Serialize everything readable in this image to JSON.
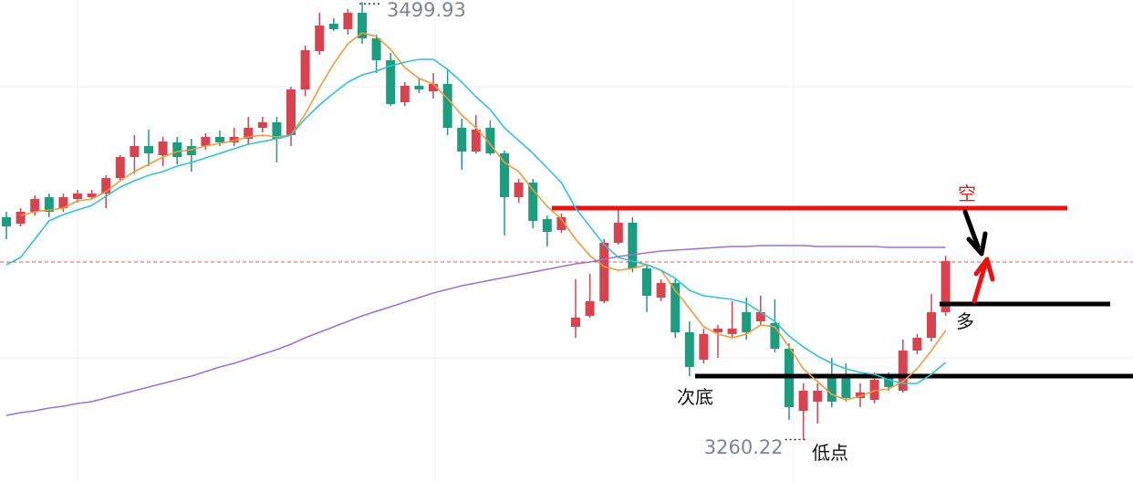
{
  "chart_data": {
    "type": "candlestick",
    "ylim": [
      3237,
      3501
    ],
    "up_color": "#d9434f",
    "down_color": "#1a9e7f",
    "open": [
      3382,
      3378.5,
      3385,
      3393,
      3387,
      3392,
      3393,
      3395,
      3403.5,
      3415,
      3421,
      3416,
      3423,
      3421,
      3421,
      3426,
      3423,
      3425,
      3431,
      3434,
      3427,
      3452,
      3473,
      3488,
      3485,
      3494,
      3480,
      3468,
      3445,
      3454,
      3451,
      3455,
      3431,
      3418,
      3431,
      3417,
      3393,
      3401,
      3381,
      3375,
      3322,
      3328,
      3336,
      3368,
      3379,
      3354,
      3338,
      3346,
      3319,
      3304,
      3319,
      3318,
      3330,
      3325,
      3324,
      3310,
      3276,
      3281,
      3294,
      3294,
      3283,
      3282,
      3294,
      3287,
      3309,
      3316,
      3330
    ],
    "close": [
      3377,
      3385,
      3392,
      3385,
      3393,
      3395,
      3395,
      3403.5,
      3415,
      3421,
      3417,
      3423.5,
      3415,
      3416,
      3426,
      3423,
      3426,
      3431,
      3434,
      3425,
      3452,
      3473.5,
      3487,
      3485,
      3494,
      3480,
      3468,
      3444,
      3454,
      3452,
      3455,
      3431,
      3418,
      3430,
      3417,
      3393,
      3401,
      3380,
      3374,
      3382,
      3327,
      3336,
      3368,
      3379,
      3354,
      3339,
      3346,
      3319,
      3300,
      3318,
      3321,
      3321,
      3319,
      3330,
      3310,
      3278,
      3287,
      3287,
      3281,
      3283,
      3286,
      3293,
      3289,
      3309,
      3316,
      3330,
      3358
    ],
    "high": [
      3385,
      3387,
      3394,
      3395,
      3395,
      3397,
      3397,
      3405,
      3416,
      3427,
      3430,
      3426,
      3426,
      3425,
      3428,
      3429.5,
      3431,
      3437,
      3437,
      3437,
      3453.5,
      3476,
      3494,
      3491,
      3496,
      3499.93,
      3482,
      3472,
      3456,
      3458,
      3461,
      3463,
      3436,
      3438,
      3435,
      3418.5,
      3403,
      3403,
      3383,
      3384,
      3348,
      3351,
      3370,
      3386,
      3382,
      3356,
      3348,
      3348,
      3325,
      3321,
      3323,
      3336,
      3338,
      3339,
      3337,
      3313,
      3291,
      3291,
      3305,
      3302,
      3291,
      3297,
      3297,
      3315,
      3318,
      3340,
      3361
    ],
    "low": [
      3370,
      3377,
      3383,
      3382,
      3385,
      3390,
      3392,
      3387,
      3402,
      3406,
      3410,
      3410,
      3411,
      3407,
      3419,
      3421,
      3421,
      3422,
      3428.5,
      3412,
      3421,
      3448.5,
      3471,
      3484,
      3482,
      3477,
      3461,
      3443,
      3443,
      3450,
      3447,
      3427,
      3408,
      3417,
      3416,
      3372,
      3390,
      3376,
      3366,
      3373.5,
      3316,
      3327,
      3335,
      3367,
      3352,
      3330,
      3336,
      3316,
      3295,
      3302,
      3305,
      3316,
      3315,
      3323,
      3308,
      3271,
      3260.22,
      3269,
      3278,
      3281,
      3278,
      3280,
      3287,
      3286,
      3307,
      3314,
      3328
    ],
    "lines": [
      {
        "color": "#f39a3b",
        "values": [
          null,
          3383,
          3385,
          3386,
          3387,
          3391,
          3392,
          3396,
          3402,
          3407,
          3411,
          3415,
          3418,
          3419,
          3421,
          3422.5,
          3424,
          3426,
          3427,
          3426,
          3427,
          3438.5,
          3453,
          3466,
          3477,
          3483,
          3481,
          3474,
          3464,
          3458,
          3455,
          3447,
          3438,
          3431,
          3422,
          3412,
          3407,
          3397,
          3388,
          3381,
          3370,
          3361,
          3355,
          3353,
          3354,
          3356,
          3353,
          3342,
          3332,
          3322,
          3318,
          3316,
          3318,
          3323,
          3322,
          3311,
          3299,
          3292,
          3285,
          3282,
          3284,
          3287,
          3288,
          3292,
          3299,
          3309,
          3320
        ]
      },
      {
        "color": "#2ec4d6",
        "values": [
          3356,
          3360,
          3370,
          3380,
          3383.5,
          3386,
          3388.5,
          3393.5,
          3398.5,
          3402,
          3405,
          3407,
          3410,
          3412,
          3414.5,
          3417,
          3419.5,
          3422,
          3423.5,
          3425,
          3427,
          3436,
          3443.5,
          3450,
          3456,
          3460,
          3462,
          3465,
          3467,
          3468.5,
          3468.5,
          3463,
          3456,
          3448,
          3441,
          3431,
          3424,
          3417,
          3409,
          3401,
          3387,
          3377,
          3367,
          3360,
          3358,
          3356,
          3353,
          3348.5,
          3342,
          3339,
          3338,
          3337,
          3335,
          3330,
          3325,
          3317,
          3311,
          3306,
          3302,
          3299,
          3297,
          3296,
          3293,
          3291,
          3291,
          3296,
          3302.5
        ]
      },
      {
        "color": "#9b72d9",
        "values": [
          3273.5,
          3275,
          3276,
          3277.5,
          3278.5,
          3280,
          3281,
          3283,
          3285,
          3287,
          3289,
          3291,
          3293,
          3295,
          3297.5,
          3300,
          3302,
          3304.5,
          3307,
          3309.5,
          3312.5,
          3316,
          3319,
          3322,
          3325,
          3328,
          3330.5,
          3333,
          3335.5,
          3338,
          3340.5,
          3342.5,
          3344.5,
          3346,
          3347.5,
          3349,
          3350.5,
          3352,
          3353.5,
          3355,
          3356.5,
          3357.5,
          3359,
          3360.5,
          3361.5,
          3362.5,
          3363.5,
          3364,
          3364.5,
          3365,
          3365.5,
          3366,
          3366,
          3366.5,
          3366.5,
          3366.5,
          3366.5,
          3366,
          3366,
          3366,
          3366,
          3366,
          3365.5,
          3365.5,
          3365.5,
          3365.5,
          3365.5
        ]
      }
    ],
    "levels": [
      {
        "value": 3357.5,
        "color": "#e05a5a",
        "style": "dashed"
      },
      {
        "value": 3387,
        "color": "#ee1111",
        "style": "solid"
      },
      {
        "value": 3334.5,
        "color": "#000000",
        "style": "solid"
      },
      {
        "value": 3295,
        "color": "#000000",
        "style": "solid"
      }
    ],
    "annotations": [
      {
        "text": "空",
        "color": "#e0201a"
      },
      {
        "text": "多",
        "color": "#111111"
      },
      {
        "text": "次底",
        "color": "#111111"
      },
      {
        "text": "低点",
        "color": "#111111"
      }
    ]
  }
}
